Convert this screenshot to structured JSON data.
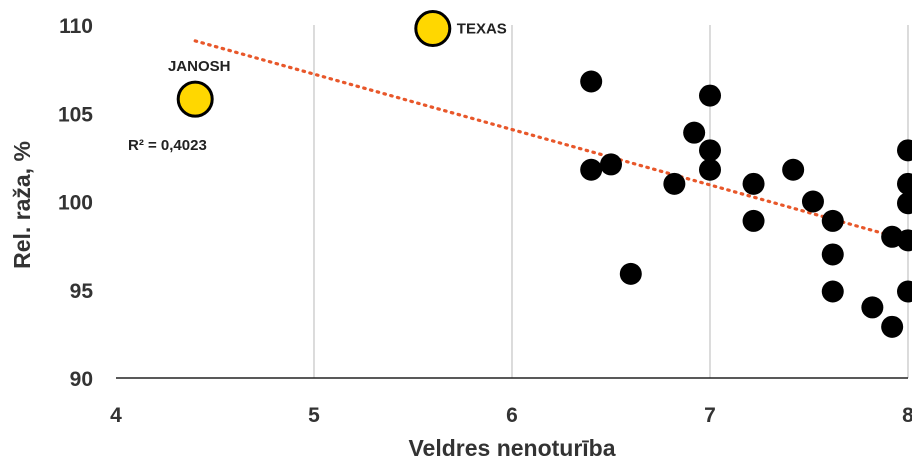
{
  "chart_data": {
    "type": "scatter",
    "xlabel": "Veldres nenoturība",
    "ylabel": "Rel. raža,  %",
    "xlim": [
      4,
      8
    ],
    "ylim": [
      90,
      110
    ],
    "x_ticks": [
      "4",
      "5",
      "6",
      "7",
      "8"
    ],
    "y_ticks": [
      "90",
      "95",
      "100",
      "105",
      "110"
    ],
    "grid": "vertical",
    "series": [
      {
        "color": "#000000",
        "points": [
          {
            "x": 6.4,
            "y": 106.8
          },
          {
            "x": 6.4,
            "y": 101.8
          },
          {
            "x": 6.5,
            "y": 102.1
          },
          {
            "x": 6.6,
            "y": 95.9
          },
          {
            "x": 6.82,
            "y": 101.0
          },
          {
            "x": 6.92,
            "y": 103.9
          },
          {
            "x": 7.0,
            "y": 106.0
          },
          {
            "x": 7.0,
            "y": 102.9
          },
          {
            "x": 7.0,
            "y": 101.8
          },
          {
            "x": 7.22,
            "y": 101.0
          },
          {
            "x": 7.22,
            "y": 98.9
          },
          {
            "x": 7.42,
            "y": 101.8
          },
          {
            "x": 7.52,
            "y": 100.0
          },
          {
            "x": 7.62,
            "y": 98.9
          },
          {
            "x": 7.62,
            "y": 97.0
          },
          {
            "x": 7.62,
            "y": 94.9
          },
          {
            "x": 7.82,
            "y": 94.0
          },
          {
            "x": 7.92,
            "y": 92.9
          },
          {
            "x": 7.92,
            "y": 98.0
          },
          {
            "x": 8.0,
            "y": 102.9
          },
          {
            "x": 8.0,
            "y": 101.0
          },
          {
            "x": 8.0,
            "y": 99.9
          },
          {
            "x": 8.0,
            "y": 97.8
          },
          {
            "x": 8.0,
            "y": 94.9
          }
        ]
      },
      {
        "color": "#ffd700",
        "points": [
          {
            "x": 4.4,
            "y": 105.8,
            "label": "JANOSH"
          },
          {
            "x": 5.6,
            "y": 109.8,
            "label": "TEXAS"
          }
        ]
      }
    ],
    "trendline": {
      "type": "linear",
      "color": "#e8572a",
      "style": "dotted",
      "x": [
        4.4,
        8.0
      ],
      "y": [
        109.1,
        97.8
      ],
      "r2_label": "R² = 0,4023"
    }
  }
}
